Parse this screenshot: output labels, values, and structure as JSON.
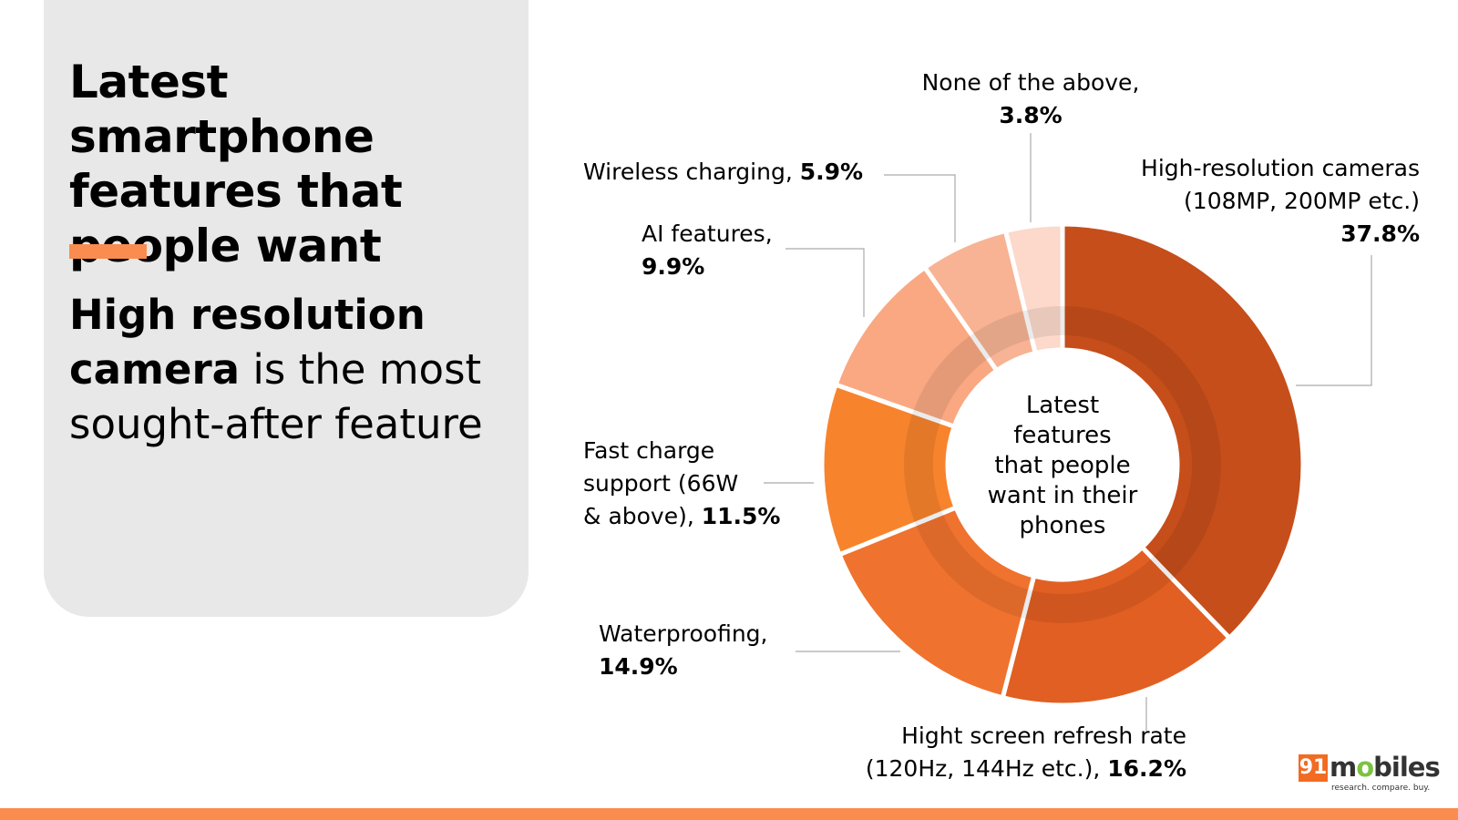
{
  "left_panel": {
    "title": "Latest smartphone features that people want",
    "subtitle_bold": "High resolution camera",
    "subtitle_rest": " is the most sought-after feature"
  },
  "colors": {
    "panel_bg": "#e8e8e8",
    "accent": "#fb8c4f",
    "bottom_bar": "#fb8c4f",
    "logo_box": "#f26b22",
    "logo_dot": "#7cc242"
  },
  "chart_data": {
    "type": "pie",
    "variant": "donut",
    "center_label": [
      "Latest",
      "features",
      "that people",
      "want in their",
      "phones"
    ],
    "slices": [
      {
        "label_lines": [
          "High-resolution cameras",
          "(108MP, 200MP etc.)"
        ],
        "label_inline": "",
        "value": 37.8,
        "value_text": "37.8%",
        "color": "#c64e1b"
      },
      {
        "label_lines": [
          "Hight screen refresh rate"
        ],
        "label_inline": "(120Hz, 144Hz etc.),",
        "value": 16.2,
        "value_text": "16.2%",
        "color": "#e15f22"
      },
      {
        "label_lines": [
          "Waterproofing,"
        ],
        "label_inline": "",
        "value": 14.9,
        "value_text": "14.9%",
        "color": "#ef722e"
      },
      {
        "label_lines": [
          "Fast charge",
          "support (66W"
        ],
        "label_inline": "& above),",
        "value": 11.5,
        "value_text": "11.5%",
        "color": "#f8832d"
      },
      {
        "label_lines": [
          "AI features,"
        ],
        "label_inline": "",
        "value": 9.9,
        "value_text": "9.9%",
        "color": "#f9a882"
      },
      {
        "label_lines": [],
        "label_inline": "Wireless charging,",
        "value": 5.9,
        "value_text": "5.9%",
        "color": "#f7b394"
      },
      {
        "label_lines": [
          "None of the above,"
        ],
        "label_inline": "",
        "value": 3.8,
        "value_text": "3.8%",
        "color": "#fcd9cb"
      }
    ]
  },
  "logo": {
    "number": "91",
    "word": "mobiles",
    "tagline": "research. compare. buy."
  }
}
